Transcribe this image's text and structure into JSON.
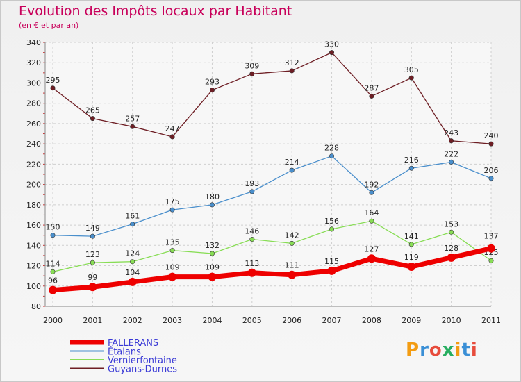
{
  "title": "Evolution des Impôts locaux par Habitant",
  "subtitle": "(en € et par an)",
  "logo": {
    "text": "Proxiti",
    "colors": [
      "#f39c12",
      "#3a8fd6",
      "#e74c3c",
      "#27ae60",
      "#f39c12",
      "#3a8fd6",
      "#e74c3c"
    ]
  },
  "chart_data": {
    "type": "line",
    "x": [
      "2000",
      "2001",
      "2002",
      "2003",
      "2004",
      "2005",
      "2006",
      "2007",
      "2008",
      "2009",
      "2010",
      "2011"
    ],
    "ylim": [
      80,
      340
    ],
    "yticks": [
      80,
      100,
      120,
      140,
      160,
      180,
      200,
      220,
      240,
      260,
      280,
      300,
      320,
      340
    ],
    "grid": true,
    "legend_position": "bottom-left",
    "series": [
      {
        "name": "FALLERANS",
        "color": "#ee0000",
        "values": [
          96,
          99,
          104,
          109,
          109,
          113,
          111,
          115,
          127,
          119,
          128,
          137
        ]
      },
      {
        "name": "Étalans",
        "color": "#4a8fcc",
        "values": [
          150,
          149,
          161,
          175,
          180,
          193,
          214,
          228,
          192,
          216,
          222,
          206
        ]
      },
      {
        "name": "Vernierfontaine",
        "color": "#88dd55",
        "values": [
          114,
          123,
          124,
          135,
          132,
          146,
          142,
          156,
          164,
          141,
          153,
          125
        ]
      },
      {
        "name": "Guyans-Durnes",
        "color": "#6e1e24",
        "values": [
          295,
          265,
          257,
          247,
          293,
          309,
          312,
          330,
          287,
          305,
          243,
          240
        ]
      }
    ]
  }
}
